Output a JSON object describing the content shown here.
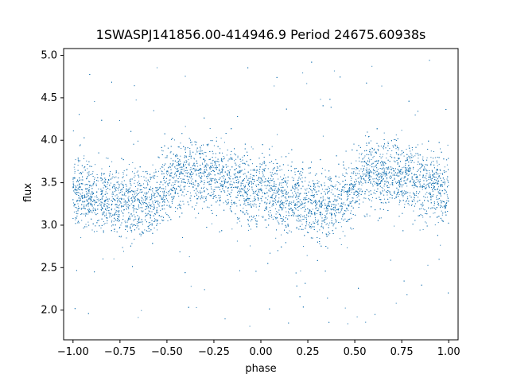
{
  "chart_data": {
    "type": "scatter",
    "title": "1SWASPJ141856.00-414946.9 Period 24675.60938s",
    "xlabel": "phase",
    "ylabel": "flux",
    "xlim": [
      -1.05,
      1.05
    ],
    "ylim": [
      1.65,
      5.08
    ],
    "x_ticks": [
      -1.0,
      -0.75,
      -0.5,
      -0.25,
      0.0,
      0.25,
      0.5,
      0.75,
      1.0
    ],
    "x_tick_labels": [
      "−1.00",
      "−0.75",
      "−0.50",
      "−0.25",
      "0.00",
      "0.25",
      "0.50",
      "0.75",
      "1.00"
    ],
    "y_ticks": [
      2.0,
      2.5,
      3.0,
      3.5,
      4.0,
      4.5,
      5.0
    ],
    "y_tick_labels": [
      "2.0",
      "2.5",
      "3.0",
      "3.5",
      "4.0",
      "4.5",
      "5.0"
    ],
    "grid": false,
    "point_color": "#1f77b4",
    "series": [
      {
        "x": [
          -1.0,
          -0.9,
          -0.8,
          -0.7,
          -0.6,
          -0.55,
          -0.5,
          -0.45,
          -0.4,
          -0.3,
          -0.2,
          -0.1,
          0.0,
          0.1,
          0.2,
          0.3,
          0.4,
          0.45,
          0.5,
          0.55,
          0.6,
          0.7,
          0.8,
          0.9,
          1.0
        ],
        "y": [
          3.38,
          3.34,
          3.3,
          3.27,
          3.26,
          3.3,
          3.45,
          3.58,
          3.62,
          3.6,
          3.55,
          3.47,
          3.38,
          3.32,
          3.28,
          3.26,
          3.26,
          3.3,
          3.45,
          3.58,
          3.62,
          3.6,
          3.55,
          3.47,
          3.38
        ],
        "spread": 0.2
      }
    ]
  }
}
